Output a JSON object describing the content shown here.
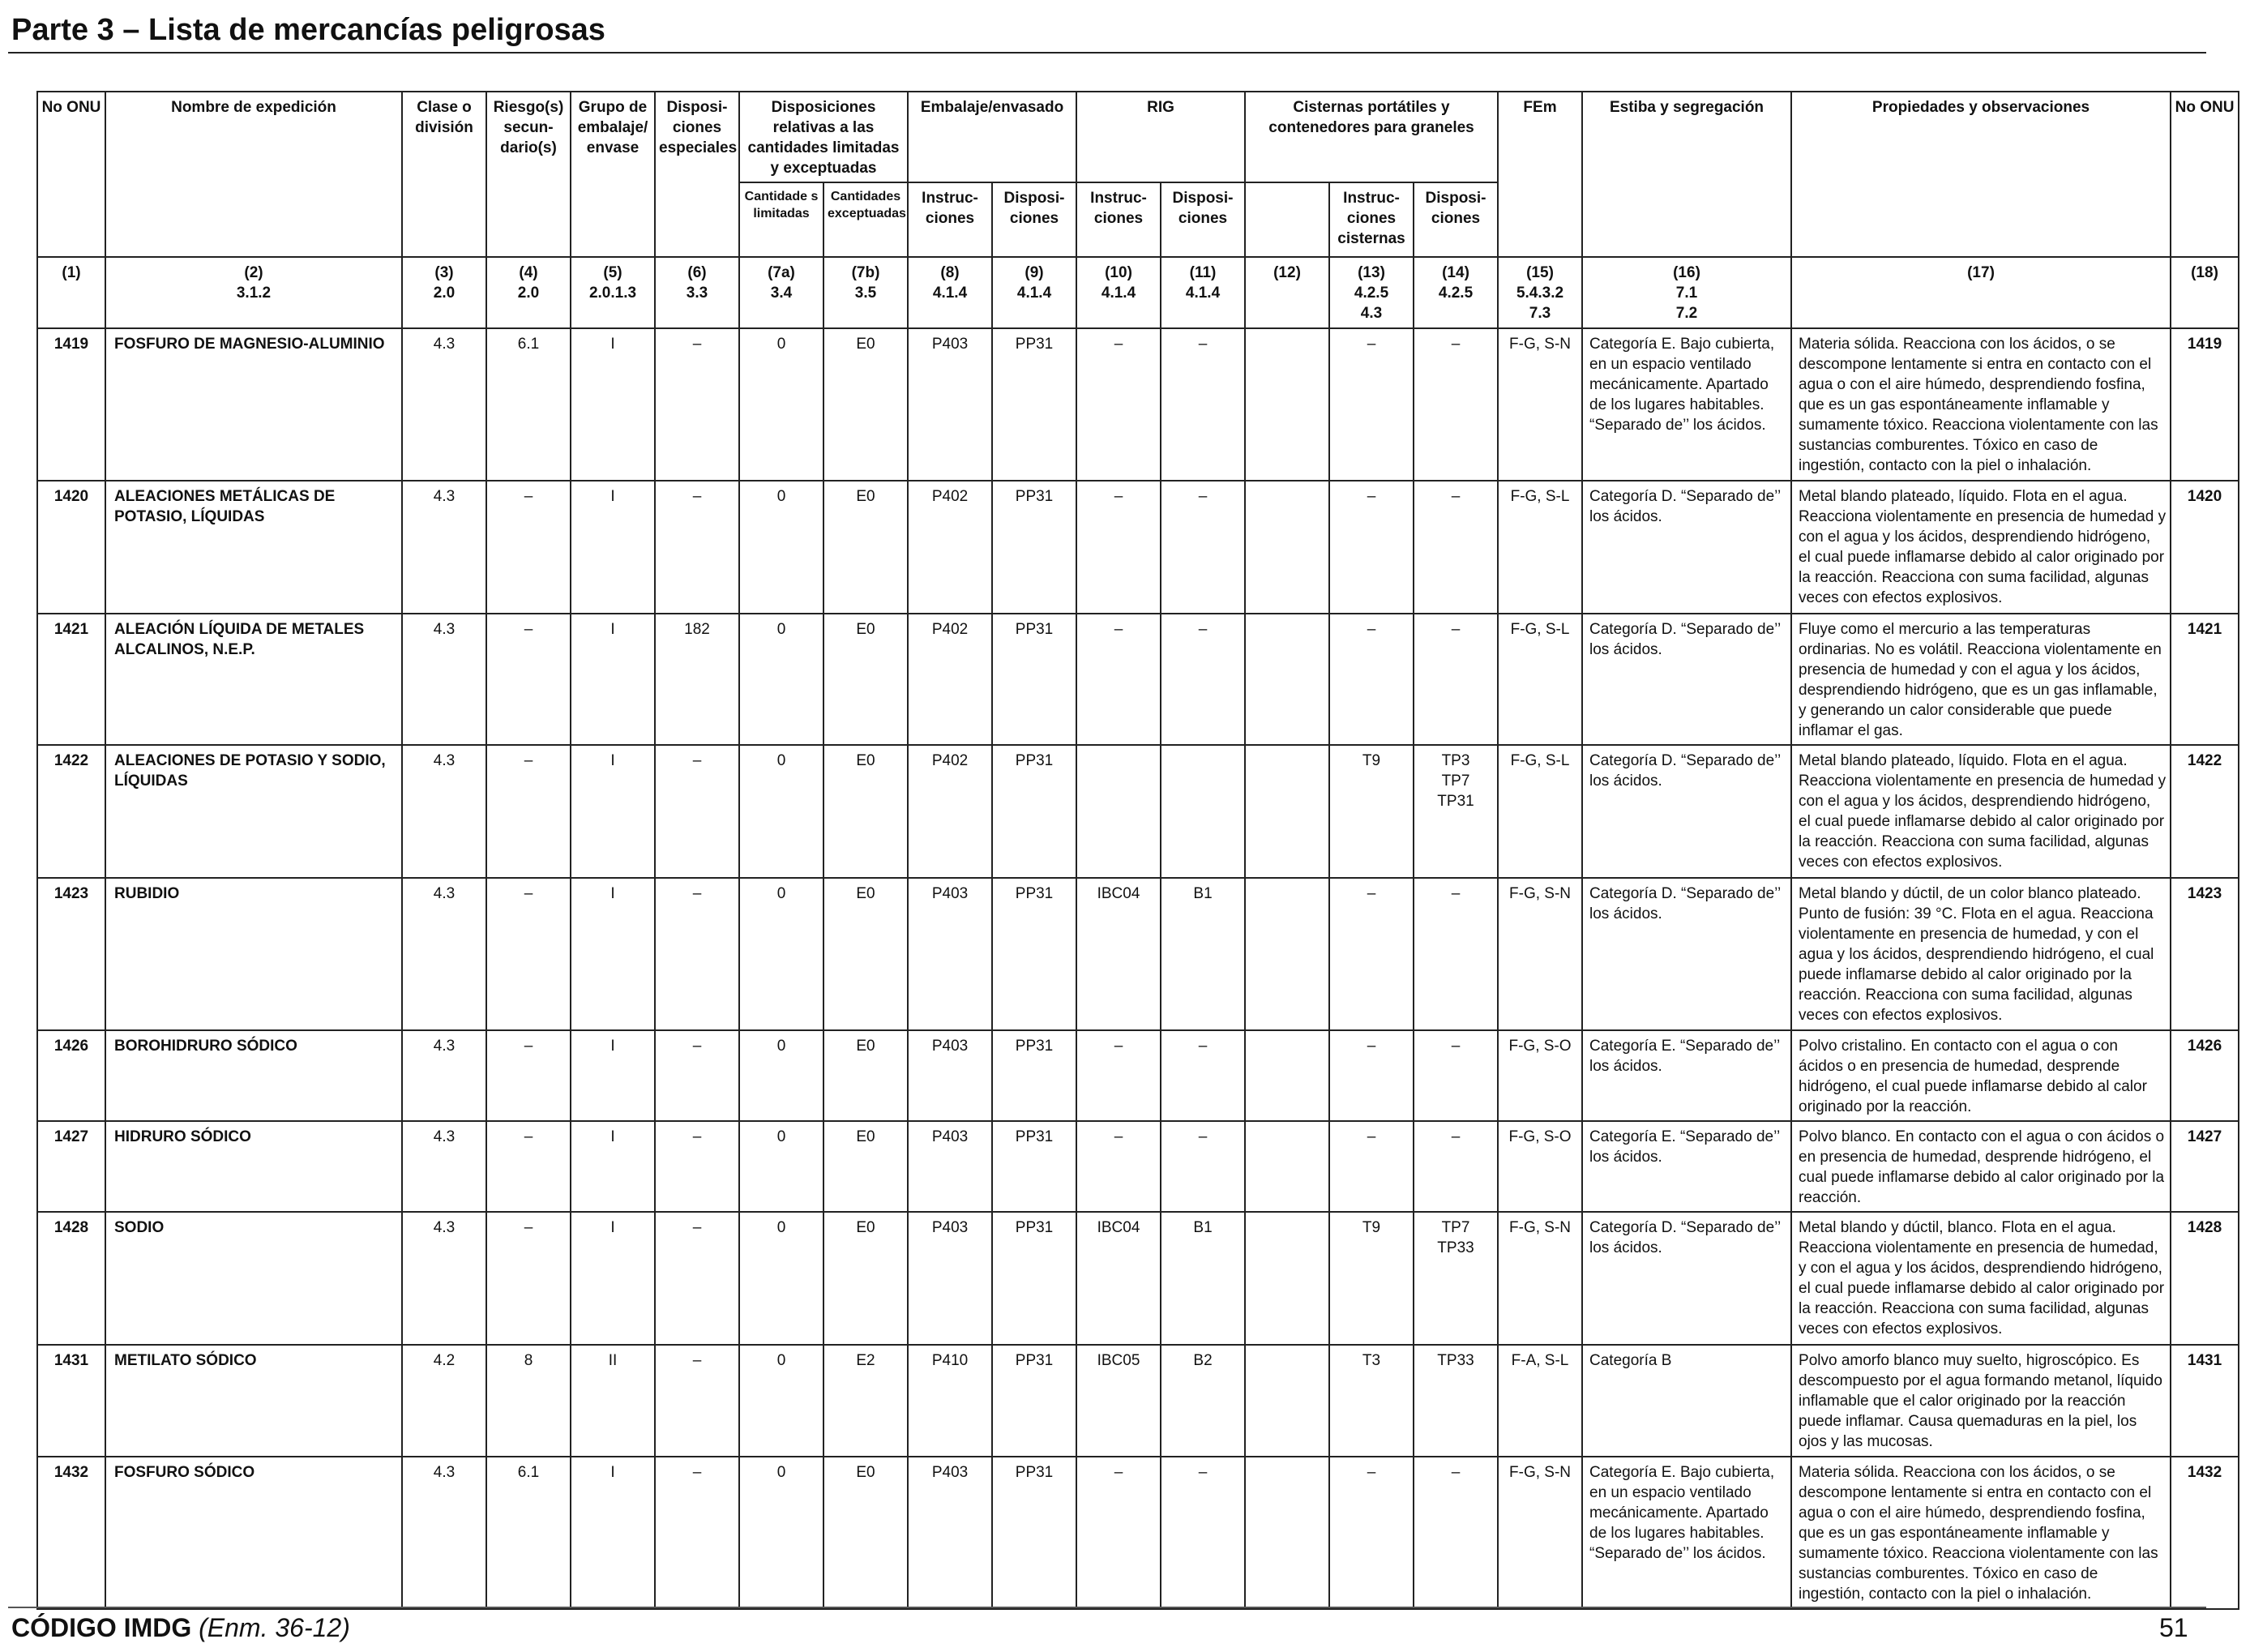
{
  "title": "Parte 3 – Lista de mercancías peligrosas",
  "headers": {
    "h1": "No ONU",
    "h2": "Nombre de expedición",
    "h3": "Clase o división",
    "h4": "Riesgo(s) secun-dario(s)",
    "h5": "Grupo de embalaje/ envase",
    "h6": "Disposi-ciones especiales",
    "h7": "Disposiciones relativas a las cantidades limitadas y exceptuadas",
    "h7a": "Cantidade s limitadas",
    "h7b": "Cantidades exceptuadas",
    "h8_9": "Embalaje/envasado",
    "h8": "Instruc-ciones",
    "h9": "Disposi-ciones",
    "h10_11": "RIG",
    "h10": "Instruc-ciones",
    "h11": "Disposi-ciones",
    "h12_14": "Cisternas portátiles y contenedores para graneles",
    "h13": "Instruc-ciones cisternas",
    "h14": "Disposi-ciones",
    "h15": "FEm",
    "h16": "Estiba y segregación",
    "h17": "Propiedades y observaciones",
    "h18": "No ONU"
  },
  "column_refs": {
    "c1": "(1)",
    "c2": "(2)\n3.1.2",
    "c3": "(3)\n2.0",
    "c4": "(4)\n2.0",
    "c5": "(5)\n2.0.1.3",
    "c6": "(6)\n3.3",
    "c7a": "(7a)\n3.4",
    "c7b": "(7b)\n3.5",
    "c8": "(8)\n4.1.4",
    "c9": "(9)\n4.1.4",
    "c10": "(10)\n4.1.4",
    "c11": "(11)\n4.1.4",
    "c12": "(12)",
    "c13": "(13)\n4.2.5\n4.3",
    "c14": "(14)\n4.2.5",
    "c15": "(15)\n5.4.3.2\n7.3",
    "c16": "(16)\n7.1\n7.2",
    "c17": "(17)",
    "c18": "(18)"
  },
  "rows": [
    {
      "onu": "1419",
      "name": "FOSFURO DE MAGNESIO-ALUMINIO",
      "clase": "4.3",
      "riesgo": "6.1",
      "grupo": "I",
      "disp": "–",
      "lim": "0",
      "exc": "E0",
      "emb_inst": "P403",
      "emb_disp": "PP31",
      "rig_inst": "–",
      "rig_disp": "–",
      "c12": "",
      "tank_inst": "–",
      "tank_disp": "–",
      "fem": "F-G, S-N",
      "estiba": "Categoría E. Bajo cubierta, en un espacio ventilado mecánicamente. Apartado de los lugares habitables. “Separado de’’ los ácidos.",
      "props": "Materia sólida. Reacciona con los ácidos, o se descompone lentamente si entra en contacto con el agua o con el aire húmedo, desprendiendo fosfina, que es un gas espontáneamente inflamable y sumamente tóxico. Reacciona violentamente con las sustancias comburentes. Tóxico en caso de ingestión, contacto con la piel o inhalación.",
      "onu2": "1419"
    },
    {
      "onu": "1420",
      "name": "ALEACIONES METÁLICAS DE POTASIO, LÍQUIDAS",
      "clase": "4.3",
      "riesgo": "–",
      "grupo": "I",
      "disp": "–",
      "lim": "0",
      "exc": "E0",
      "emb_inst": "P402",
      "emb_disp": "PP31",
      "rig_inst": "–",
      "rig_disp": "–",
      "c12": "",
      "tank_inst": "–",
      "tank_disp": "–",
      "fem": "F-G, S-L",
      "estiba": "Categoría D. “Separado de’’ los ácidos.",
      "props": "Metal blando plateado, líquido. Flota en el agua. Reacciona violentamente en presencia de humedad y con el agua y los ácidos, desprendiendo hidrógeno, el cual puede inflamarse debido al calor originado por la reacción. Reacciona con suma facilidad, algunas veces con efectos explosivos.",
      "onu2": "1420"
    },
    {
      "onu": "1421",
      "name": "ALEACIÓN LÍQUIDA DE METALES ALCALINOS, N.E.P.",
      "clase": "4.3",
      "riesgo": "–",
      "grupo": "I",
      "disp": "182",
      "lim": "0",
      "exc": "E0",
      "emb_inst": "P402",
      "emb_disp": "PP31",
      "rig_inst": "–",
      "rig_disp": "–",
      "c12": "",
      "tank_inst": "–",
      "tank_disp": "–",
      "fem": "F-G, S-L",
      "estiba": "Categoría D. “Separado de’’ los ácidos.",
      "props": "Fluye como el mercurio a las temperaturas ordinarias. No es volátil. Reacciona violentamente en presencia de humedad y con el agua y los ácidos, desprendiendo hidrógeno, que es un gas inflamable, y generando un calor considerable que puede inflamar el gas.",
      "onu2": "1421"
    },
    {
      "onu": "1422",
      "name": "ALEACIONES DE POTASIO Y SODIO, LÍQUIDAS",
      "clase": "4.3",
      "riesgo": "–",
      "grupo": "I",
      "disp": "–",
      "lim": "0",
      "exc": "E0",
      "emb_inst": "P402",
      "emb_disp": "PP31",
      "rig_inst": "",
      "rig_disp": "",
      "c12": "",
      "tank_inst": "T9",
      "tank_disp": "TP3\nTP7\nTP31",
      "fem": "F-G, S-L",
      "estiba": "Categoría D. “Separado de’’ los ácidos.",
      "props": "Metal blando plateado, líquido. Flota en el agua. Reacciona violentamente en presencia de humedad y con el agua y los ácidos, desprendiendo hidrógeno, el cual puede inflamarse debido al calor originado por la reacción. Reacciona con suma facilidad, algunas veces con efectos explosivos.",
      "onu2": "1422"
    },
    {
      "onu": "1423",
      "name": "RUBIDIO",
      "clase": "4.3",
      "riesgo": "–",
      "grupo": "I",
      "disp": "–",
      "lim": "0",
      "exc": "E0",
      "emb_inst": "P403",
      "emb_disp": "PP31",
      "rig_inst": "IBC04",
      "rig_disp": "B1",
      "c12": "",
      "tank_inst": "–",
      "tank_disp": "–",
      "fem": "F-G, S-N",
      "estiba": "Categoría D. “Separado de’’ los ácidos.",
      "props": "Metal blando y dúctil, de un color blanco plateado. Punto de fusión: 39 °C. Flota en el agua. Reacciona violentamente en presencia de humedad, y con el agua y los ácidos, desprendiendo hidrógeno, el cual puede inflamarse debido al calor originado por la reacción. Reacciona con suma facilidad, algunas veces con efectos explosivos.",
      "onu2": "1423"
    },
    {
      "onu": "1426",
      "name": "BOROHIDRURO SÓDICO",
      "clase": "4.3",
      "riesgo": "–",
      "grupo": "I",
      "disp": "–",
      "lim": "0",
      "exc": "E0",
      "emb_inst": "P403",
      "emb_disp": "PP31",
      "rig_inst": "–",
      "rig_disp": "–",
      "c12": "",
      "tank_inst": "–",
      "tank_disp": "–",
      "fem": "F-G, S-O",
      "estiba": "Categoría E. “Separado de’’ los ácidos.",
      "props": "Polvo cristalino. En contacto con el agua o con ácidos o en presencia de humedad, desprende hidrógeno, el cual puede inflamarse debido al calor originado por la reacción.",
      "onu2": "1426"
    },
    {
      "onu": "1427",
      "name": "HIDRURO SÓDICO",
      "clase": "4.3",
      "riesgo": "–",
      "grupo": "I",
      "disp": "–",
      "lim": "0",
      "exc": "E0",
      "emb_inst": "P403",
      "emb_disp": "PP31",
      "rig_inst": "–",
      "rig_disp": "–",
      "c12": "",
      "tank_inst": "–",
      "tank_disp": "–",
      "fem": "F-G, S-O",
      "estiba": "Categoría E. “Separado de’’ los ácidos.",
      "props": "Polvo blanco. En contacto con el agua o con ácidos o en presencia de humedad, desprende hidrógeno, el cual puede inflamarse debido al calor originado por la reacción.",
      "onu2": "1427"
    },
    {
      "onu": "1428",
      "name": "SODIO",
      "clase": "4.3",
      "riesgo": "–",
      "grupo": "I",
      "disp": "–",
      "lim": "0",
      "exc": "E0",
      "emb_inst": "P403",
      "emb_disp": "PP31",
      "rig_inst": "IBC04",
      "rig_disp": "B1",
      "c12": "",
      "tank_inst": "T9",
      "tank_disp": "TP7\nTP33",
      "fem": "F-G, S-N",
      "estiba": "Categoría D. “Separado de’’ los ácidos.",
      "props": "Metal blando y dúctil, blanco. Flota en el agua. Reacciona violentamente en presencia de humedad, y con el agua y los ácidos, desprendiendo hidrógeno, el cual puede inflamarse debido al calor originado por la reacción. Reacciona con suma facilidad, algunas veces con efectos explosivos.",
      "onu2": "1428"
    },
    {
      "onu": "1431",
      "name": "METILATO SÓDICO",
      "clase": "4.2",
      "riesgo": "8",
      "grupo": "II",
      "disp": "–",
      "lim": "0",
      "exc": "E2",
      "emb_inst": "P410",
      "emb_disp": "PP31",
      "rig_inst": "IBC05",
      "rig_disp": "B2",
      "c12": "",
      "tank_inst": "T3",
      "tank_disp": "TP33",
      "fem": "F-A, S-L",
      "estiba": "Categoría B",
      "props": "Polvo amorfo blanco muy suelto, higroscópico. Es descompuesto por el agua formando metanol, líquido inflamable que el calor originado por la reacción puede inflamar. Causa quemaduras en la piel, los ojos y las mucosas.",
      "onu2": "1431"
    },
    {
      "onu": "1432",
      "name": "FOSFURO SÓDICO",
      "clase": "4.3",
      "riesgo": "6.1",
      "grupo": "I",
      "disp": "–",
      "lim": "0",
      "exc": "E0",
      "emb_inst": "P403",
      "emb_disp": "PP31",
      "rig_inst": "–",
      "rig_disp": "–",
      "c12": "",
      "tank_inst": "–",
      "tank_disp": "–",
      "fem": "F-G, S-N",
      "estiba": "Categoría E. Bajo cubierta, en un espacio ventilado mecánicamente. Apartado de los lugares habitables. “Separado de’’ los ácidos.",
      "props": "Materia sólida. Reacciona con los ácidos, o se descompone lentamente si entra en contacto con el agua o con el aire húmedo, desprendiendo fosfina, que es un gas espontáneamente inflamable y sumamente tóxico. Reacciona violentamente con las sustancias comburentes. Tóxico en caso de ingestión, contacto con la piel o inhalación.",
      "onu2": "1432"
    }
  ],
  "footer": {
    "code": "CÓDIGO IMDG",
    "edition": "(Enm. 36-12)",
    "page": "51"
  }
}
